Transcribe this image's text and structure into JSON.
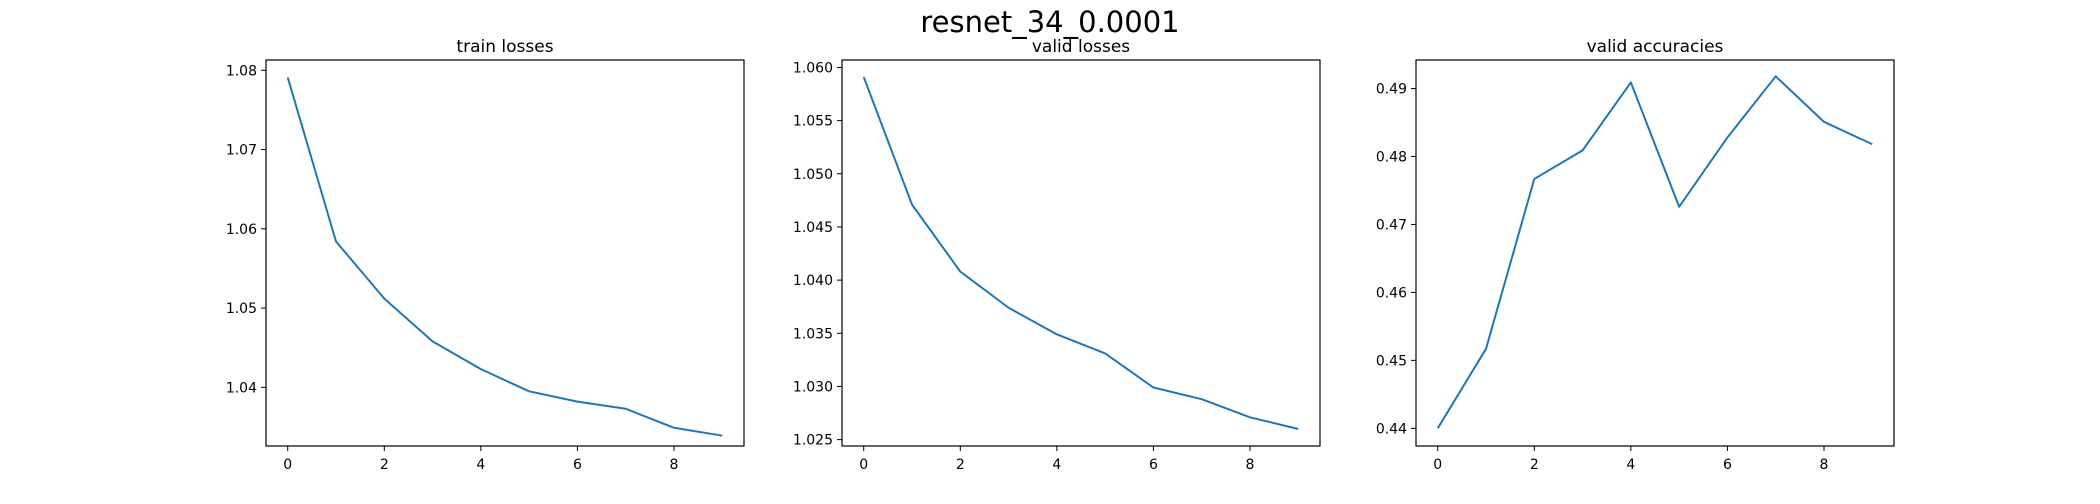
{
  "figure": {
    "title": "resnet_34_0.0001"
  },
  "colors": {
    "line": "#1f77b4",
    "axes": "#000000",
    "background": "#ffffff"
  },
  "chart_data": [
    {
      "type": "line",
      "title": "train losses",
      "xlabel": "",
      "ylabel": "",
      "grid": false,
      "xlim": [
        -0.45,
        9.45
      ],
      "ylim": [
        1.0326,
        1.0813
      ],
      "xticks": [
        0,
        2,
        4,
        6,
        8
      ],
      "xtick_labels": [
        "0",
        "2",
        "4",
        "6",
        "8"
      ],
      "yticks": [
        1.04,
        1.05,
        1.06,
        1.07,
        1.08
      ],
      "ytick_labels": [
        "1.04",
        "1.05",
        "1.06",
        "1.07",
        "1.08"
      ],
      "series": [
        {
          "x": [
            0,
            1,
            2,
            3,
            4,
            5,
            6,
            7,
            8,
            9
          ],
          "values": [
            1.0791,
            1.0584,
            1.0512,
            1.0458,
            1.0423,
            1.0395,
            1.0382,
            1.0373,
            1.0349,
            1.0339
          ]
        }
      ]
    },
    {
      "type": "line",
      "title": "valid losses",
      "xlabel": "",
      "ylabel": "",
      "grid": false,
      "xlim": [
        -0.45,
        9.45
      ],
      "ylim": [
        1.0244,
        1.0607
      ],
      "xticks": [
        0,
        2,
        4,
        6,
        8
      ],
      "xtick_labels": [
        "0",
        "2",
        "4",
        "6",
        "8"
      ],
      "yticks": [
        1.025,
        1.03,
        1.035,
        1.04,
        1.045,
        1.05,
        1.055,
        1.06
      ],
      "ytick_labels": [
        "1.025",
        "1.030",
        "1.035",
        "1.040",
        "1.045",
        "1.050",
        "1.055",
        "1.060"
      ],
      "series": [
        {
          "x": [
            0,
            1,
            2,
            3,
            4,
            5,
            6,
            7,
            8,
            9
          ],
          "values": [
            1.0591,
            1.0471,
            1.0408,
            1.0374,
            1.0349,
            1.0331,
            1.0299,
            1.0288,
            1.0271,
            1.026
          ]
        }
      ]
    },
    {
      "type": "line",
      "title": "valid accuracies",
      "xlabel": "",
      "ylabel": "",
      "grid": false,
      "xlim": [
        -0.45,
        9.45
      ],
      "ylim": [
        0.4374,
        0.4942
      ],
      "xticks": [
        0,
        2,
        4,
        6,
        8
      ],
      "xtick_labels": [
        "0",
        "2",
        "4",
        "6",
        "8"
      ],
      "yticks": [
        0.44,
        0.45,
        0.46,
        0.47,
        0.48,
        0.49
      ],
      "ytick_labels": [
        "0.44",
        "0.45",
        "0.46",
        "0.47",
        "0.48",
        "0.49"
      ],
      "series": [
        {
          "x": [
            0,
            1,
            2,
            3,
            4,
            5,
            6,
            7,
            8,
            9
          ],
          "values": [
            0.44,
            0.4517,
            0.4767,
            0.4809,
            0.4909,
            0.4726,
            0.4828,
            0.4918,
            0.4851,
            0.4818
          ]
        }
      ]
    }
  ]
}
